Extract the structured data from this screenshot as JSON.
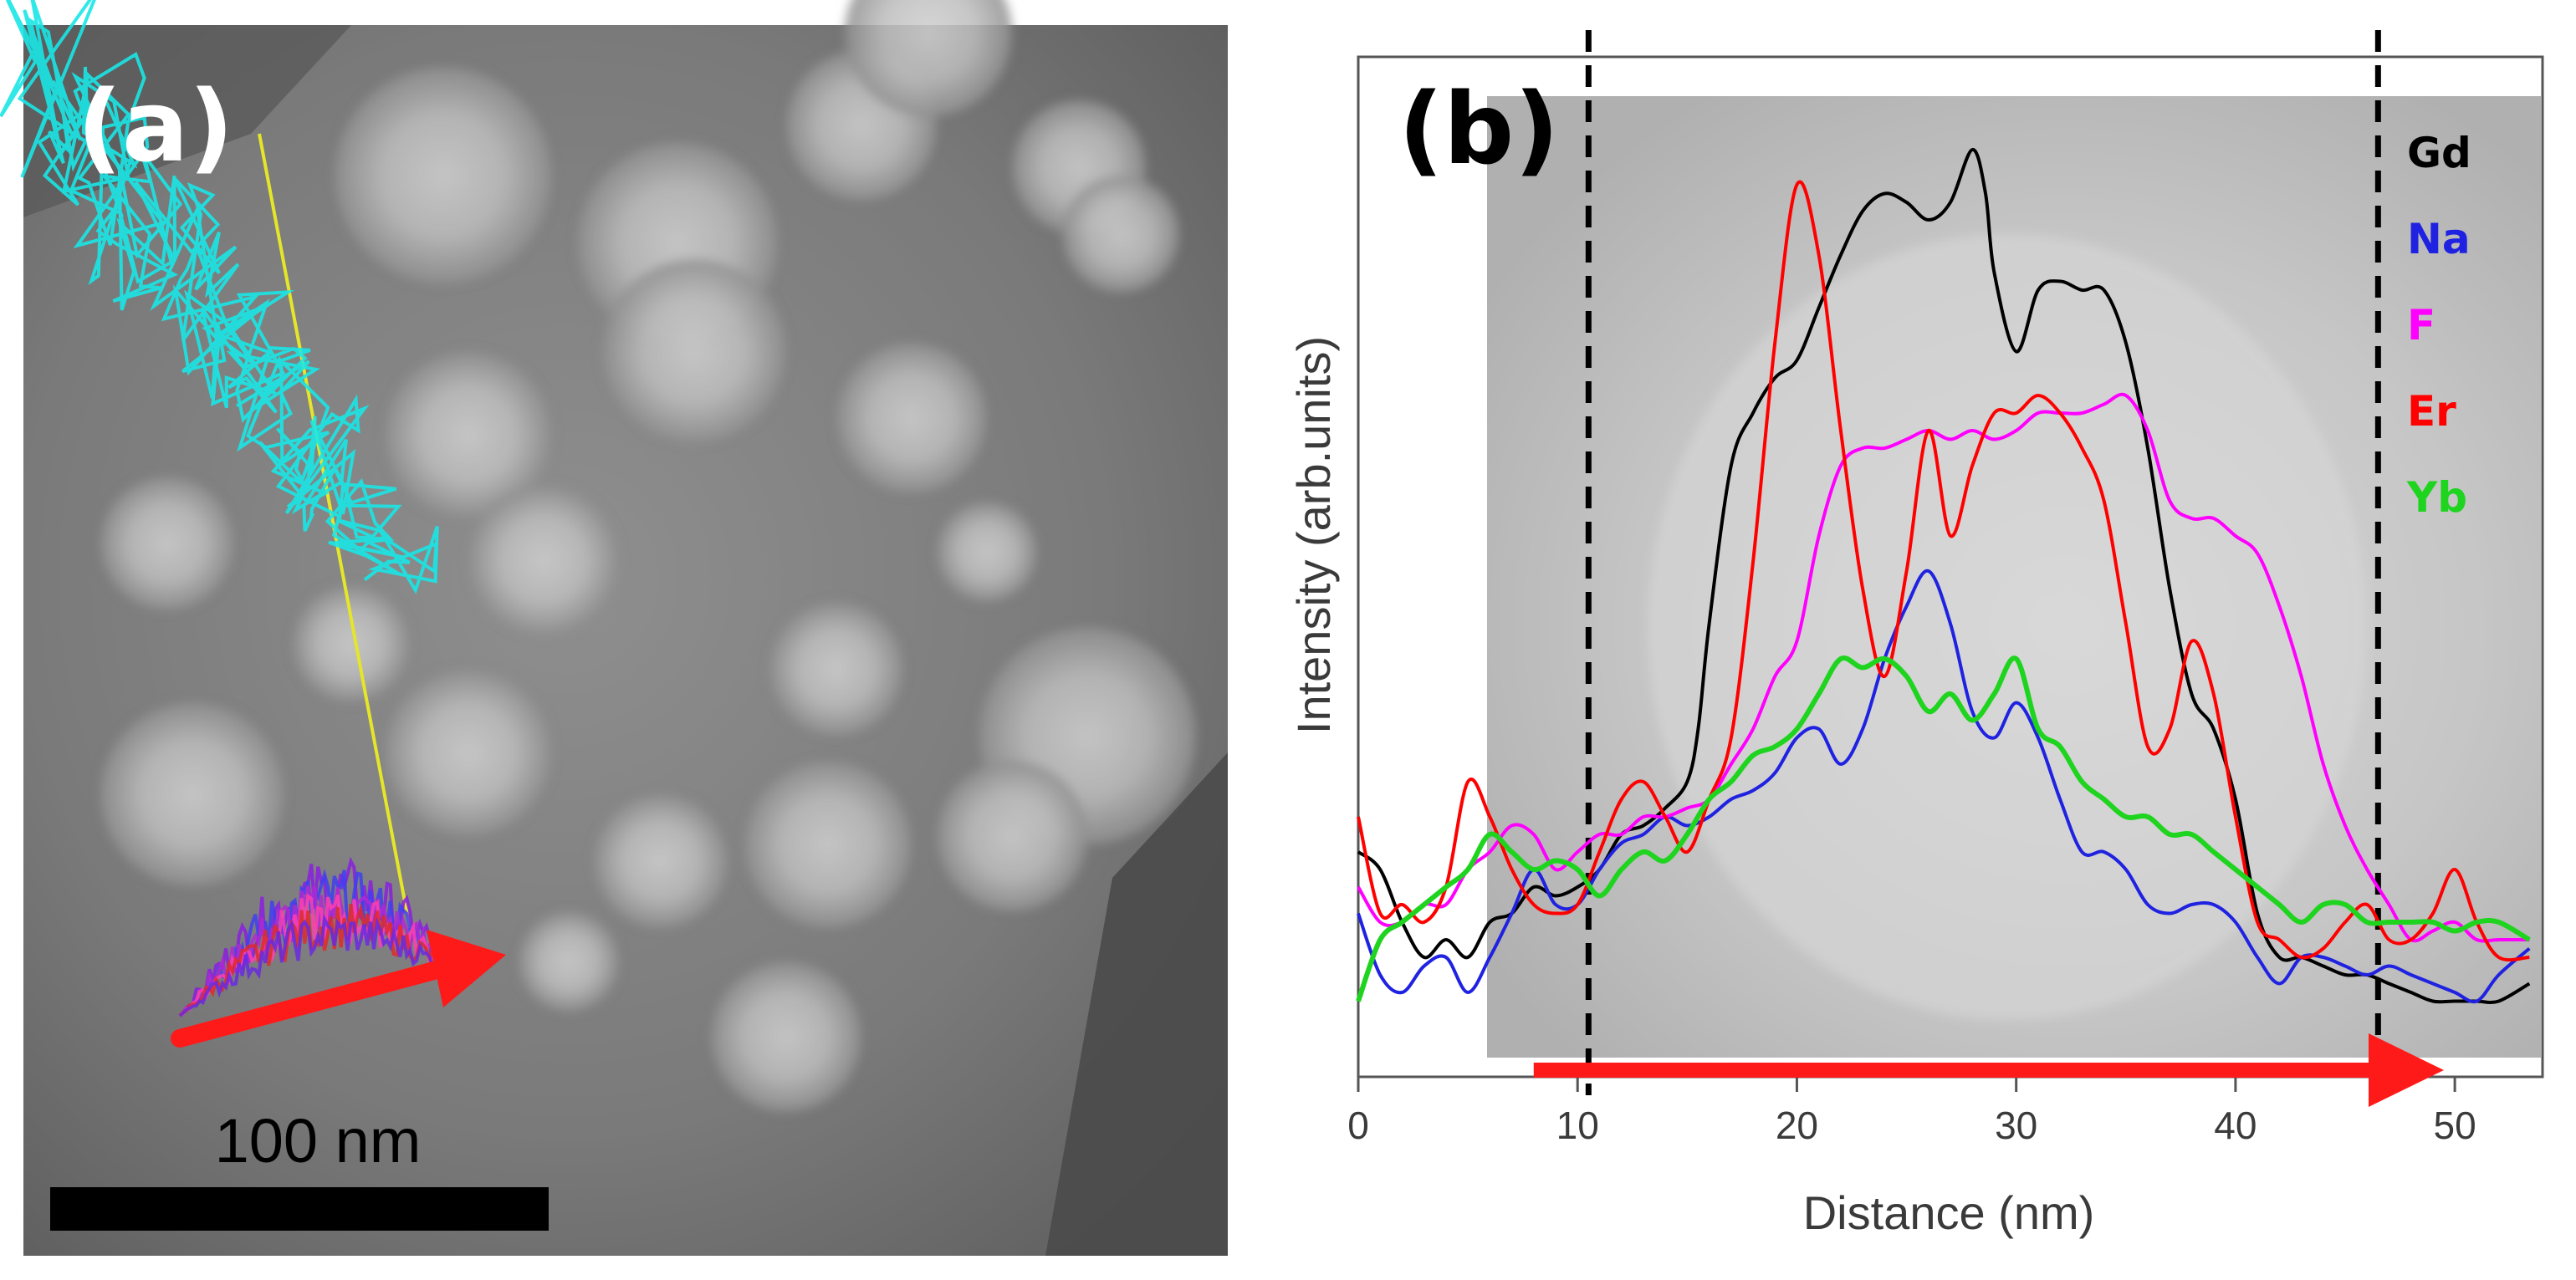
{
  "panel_a": {
    "label": "(a)",
    "scale_bar_label": "100 nm"
  },
  "panel_b": {
    "label": "(b)"
  },
  "chart_data": {
    "type": "line",
    "title": "",
    "xlabel": "Distance (nm)",
    "ylabel": "Intensity (arb.units)",
    "xlim": [
      0,
      54
    ],
    "ylim": [
      0,
      1
    ],
    "xticks": [
      "0",
      "10",
      "20",
      "30",
      "40",
      "50"
    ],
    "xtick_values": [
      0,
      10,
      20,
      30,
      40,
      50
    ],
    "vlines": [
      10.5,
      46.5
    ],
    "arrow": {
      "from": 8,
      "to": 49.5
    },
    "series": [
      {
        "name": "Gd",
        "color": "#000000",
        "x": [
          0,
          1,
          2,
          3,
          4,
          5,
          6,
          7,
          8,
          9,
          10,
          11,
          12,
          13,
          14,
          15,
          15.5,
          16,
          17,
          18,
          19,
          20,
          21,
          22,
          23,
          24,
          25,
          26,
          27,
          28,
          28.6,
          29,
          30,
          31,
          32,
          33,
          34,
          35,
          36,
          37,
          38,
          39,
          40,
          41,
          42,
          43,
          44,
          45,
          46,
          47,
          48,
          49,
          50,
          51,
          52,
          53.4
        ],
        "values": [
          0.22,
          0.2,
          0.14,
          0.1,
          0.12,
          0.1,
          0.14,
          0.15,
          0.18,
          0.17,
          0.18,
          0.2,
          0.24,
          0.25,
          0.27,
          0.3,
          0.36,
          0.48,
          0.66,
          0.72,
          0.76,
          0.78,
          0.84,
          0.9,
          0.95,
          0.97,
          0.96,
          0.94,
          0.96,
          1.02,
          0.97,
          0.88,
          0.79,
          0.86,
          0.87,
          0.86,
          0.86,
          0.8,
          0.68,
          0.52,
          0.4,
          0.36,
          0.28,
          0.15,
          0.1,
          0.1,
          0.09,
          0.08,
          0.08,
          0.07,
          0.06,
          0.05,
          0.05,
          0.05,
          0.05,
          0.07
        ]
      },
      {
        "name": "Na",
        "color": "#1f22e0",
        "x": [
          0,
          1,
          2,
          3,
          4,
          5,
          6,
          7,
          8,
          9,
          10,
          11,
          12,
          13,
          14,
          15,
          16,
          17,
          18,
          19,
          20,
          21,
          22,
          23,
          24,
          25,
          26,
          27,
          28,
          29,
          30,
          31,
          32,
          33,
          34,
          35,
          36,
          37,
          38,
          39,
          40,
          41,
          42,
          43,
          44,
          45,
          46,
          47,
          48,
          49,
          50,
          51,
          52,
          53.4
        ],
        "values": [
          0.15,
          0.08,
          0.06,
          0.09,
          0.1,
          0.06,
          0.1,
          0.15,
          0.2,
          0.16,
          0.16,
          0.2,
          0.23,
          0.24,
          0.26,
          0.25,
          0.26,
          0.28,
          0.29,
          0.31,
          0.35,
          0.36,
          0.32,
          0.36,
          0.44,
          0.5,
          0.54,
          0.48,
          0.38,
          0.35,
          0.39,
          0.35,
          0.28,
          0.22,
          0.22,
          0.2,
          0.16,
          0.15,
          0.16,
          0.16,
          0.14,
          0.1,
          0.07,
          0.1,
          0.1,
          0.09,
          0.08,
          0.09,
          0.08,
          0.07,
          0.06,
          0.05,
          0.08,
          0.11
        ]
      },
      {
        "name": "F",
        "color": "#ff00ff",
        "x": [
          0,
          1,
          2,
          3,
          4,
          5,
          6,
          7,
          8,
          9,
          10,
          11,
          12,
          13,
          14,
          15,
          16,
          17,
          18,
          19,
          20,
          21,
          22,
          23,
          24,
          25,
          26,
          27,
          28,
          29,
          30,
          31,
          32,
          33,
          34,
          35,
          36,
          37,
          38,
          39,
          40,
          41,
          42,
          43,
          44,
          45,
          46,
          47,
          48,
          49,
          50,
          51,
          52,
          53.4
        ],
        "values": [
          0.18,
          0.14,
          0.14,
          0.16,
          0.16,
          0.2,
          0.22,
          0.25,
          0.24,
          0.2,
          0.22,
          0.24,
          0.24,
          0.26,
          0.26,
          0.27,
          0.28,
          0.32,
          0.36,
          0.42,
          0.46,
          0.58,
          0.66,
          0.68,
          0.68,
          0.69,
          0.7,
          0.69,
          0.7,
          0.69,
          0.7,
          0.72,
          0.72,
          0.72,
          0.73,
          0.74,
          0.7,
          0.62,
          0.6,
          0.6,
          0.58,
          0.56,
          0.5,
          0.42,
          0.32,
          0.25,
          0.2,
          0.16,
          0.12,
          0.13,
          0.14,
          0.12,
          0.12,
          0.12
        ]
      },
      {
        "name": "Er",
        "color": "#ff0000",
        "x": [
          0,
          1,
          2,
          3,
          4,
          5,
          6,
          7,
          8,
          9,
          10,
          11,
          12,
          13,
          14,
          15,
          16,
          17,
          18,
          19,
          20,
          21,
          22,
          23,
          24,
          25,
          26,
          27,
          28,
          29,
          30,
          31,
          32,
          33,
          34,
          35,
          36,
          37,
          38,
          39,
          40,
          41,
          42,
          43,
          44,
          45,
          46,
          47,
          48,
          49,
          50,
          51,
          52,
          53.4
        ],
        "values": [
          0.26,
          0.15,
          0.16,
          0.14,
          0.18,
          0.3,
          0.26,
          0.2,
          0.16,
          0.15,
          0.16,
          0.22,
          0.28,
          0.3,
          0.26,
          0.22,
          0.28,
          0.35,
          0.55,
          0.8,
          0.98,
          0.9,
          0.7,
          0.52,
          0.42,
          0.54,
          0.7,
          0.58,
          0.66,
          0.72,
          0.72,
          0.74,
          0.72,
          0.68,
          0.62,
          0.48,
          0.34,
          0.36,
          0.46,
          0.4,
          0.26,
          0.14,
          0.12,
          0.1,
          0.11,
          0.14,
          0.16,
          0.12,
          0.12,
          0.15,
          0.2,
          0.14,
          0.1,
          0.1
        ]
      },
      {
        "name": "Yb",
        "color": "#1fd41f",
        "x": [
          0,
          1,
          2,
          3,
          4,
          5,
          6,
          7,
          8,
          9,
          10,
          11,
          12,
          13,
          14,
          15,
          16,
          17,
          18,
          19,
          20,
          21,
          22,
          23,
          24,
          25,
          26,
          27,
          28,
          29,
          30,
          31,
          32,
          33,
          34,
          35,
          36,
          37,
          38,
          39,
          40,
          41,
          42,
          43,
          44,
          45,
          46,
          47,
          48,
          49,
          50,
          51,
          52,
          53.4
        ],
        "values": [
          0.05,
          0.12,
          0.14,
          0.16,
          0.18,
          0.2,
          0.24,
          0.22,
          0.2,
          0.21,
          0.2,
          0.17,
          0.2,
          0.22,
          0.21,
          0.24,
          0.28,
          0.3,
          0.33,
          0.34,
          0.36,
          0.4,
          0.44,
          0.43,
          0.44,
          0.42,
          0.38,
          0.4,
          0.37,
          0.4,
          0.44,
          0.36,
          0.34,
          0.3,
          0.28,
          0.26,
          0.26,
          0.24,
          0.24,
          0.22,
          0.2,
          0.18,
          0.16,
          0.14,
          0.16,
          0.16,
          0.14,
          0.14,
          0.14,
          0.14,
          0.13,
          0.14,
          0.14,
          0.12
        ]
      }
    ]
  }
}
